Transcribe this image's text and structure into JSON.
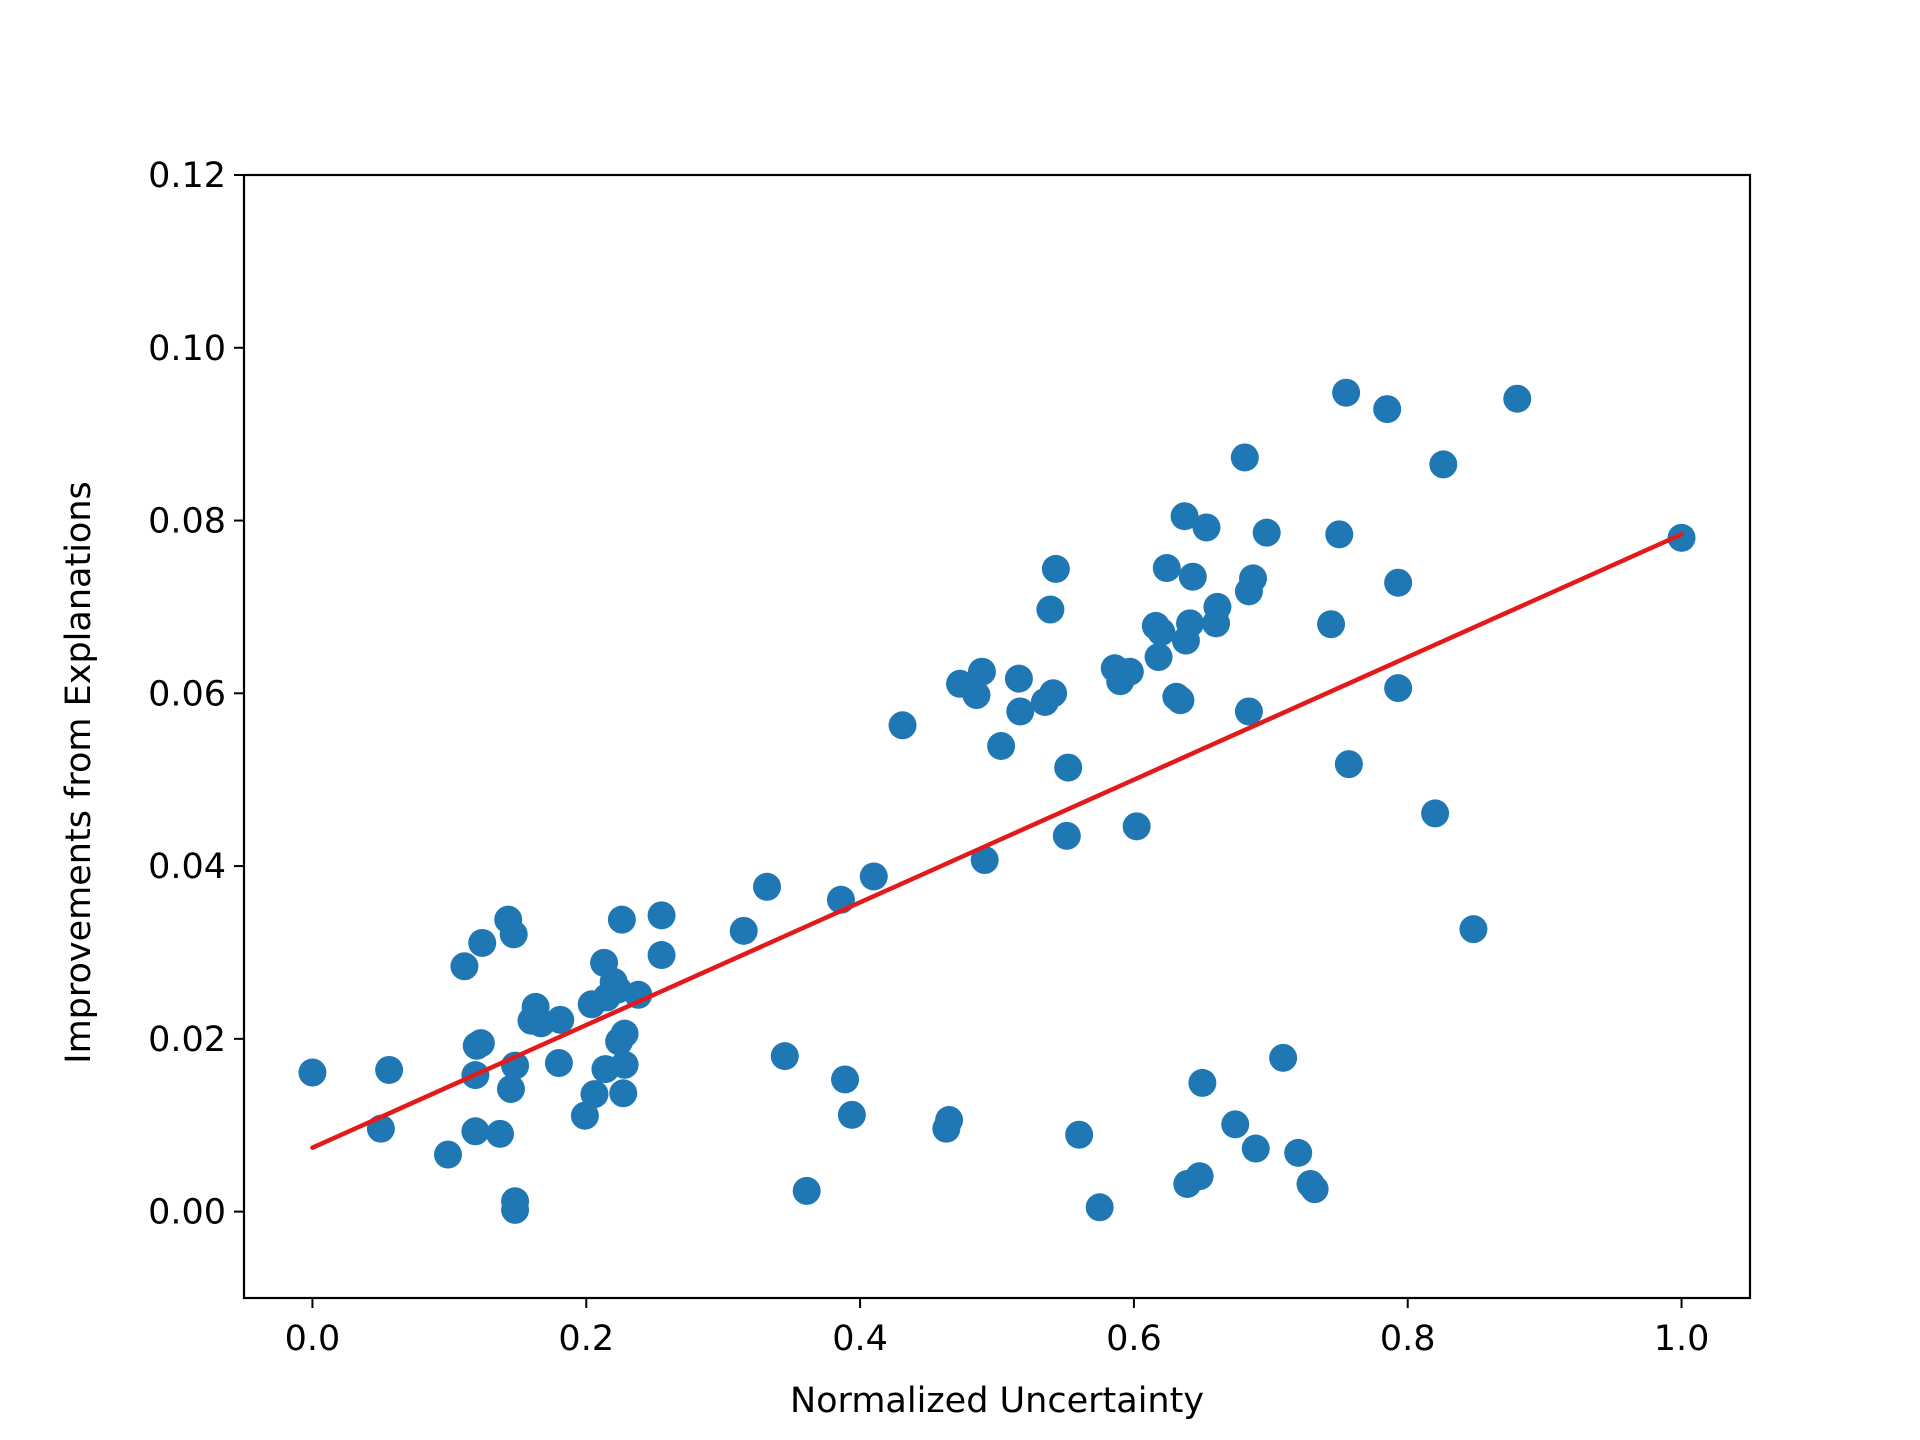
{
  "chart_data": {
    "type": "scatter",
    "title": "",
    "xlabel": "Normalized Uncertainty",
    "ylabel": "Improvements from Explanations",
    "xlim": [
      -0.05,
      1.05
    ],
    "ylim": [
      -0.01,
      0.12
    ],
    "xticks": [
      0.0,
      0.2,
      0.4,
      0.6,
      0.8,
      1.0
    ],
    "xtick_labels": [
      "0.0",
      "0.2",
      "0.4",
      "0.6",
      "0.8",
      "1.0"
    ],
    "yticks": [
      0.0,
      0.02,
      0.04,
      0.06,
      0.08,
      0.1,
      0.12
    ],
    "ytick_labels": [
      "0.00",
      "0.02",
      "0.04",
      "0.06",
      "0.08",
      "0.10",
      "0.12"
    ],
    "grid": false,
    "point_color": "#1f77b4",
    "line_color": "#e31a1c",
    "fit_line": {
      "x": [
        0.0,
        1.0
      ],
      "y": [
        0.0074,
        0.0784
      ]
    },
    "points": [
      [
        0.0,
        0.0161
      ],
      [
        0.05,
        0.0096
      ],
      [
        0.056,
        0.0164
      ],
      [
        0.099,
        0.0066
      ],
      [
        0.111,
        0.0284
      ],
      [
        0.119,
        0.0158
      ],
      [
        0.119,
        0.0093
      ],
      [
        0.12,
        0.0192
      ],
      [
        0.123,
        0.0195
      ],
      [
        0.124,
        0.0311
      ],
      [
        0.137,
        0.009
      ],
      [
        0.143,
        0.0338
      ],
      [
        0.145,
        0.0142
      ],
      [
        0.147,
        0.0321
      ],
      [
        0.148,
        0.0169
      ],
      [
        0.148,
        0.0012
      ],
      [
        0.148,
        0.0002
      ],
      [
        0.16,
        0.0221
      ],
      [
        0.163,
        0.0237
      ],
      [
        0.167,
        0.0218
      ],
      [
        0.18,
        0.0172
      ],
      [
        0.181,
        0.0222
      ],
      [
        0.199,
        0.0111
      ],
      [
        0.204,
        0.024
      ],
      [
        0.206,
        0.0136
      ],
      [
        0.213,
        0.0288
      ],
      [
        0.214,
        0.0165
      ],
      [
        0.215,
        0.0248
      ],
      [
        0.22,
        0.0266
      ],
      [
        0.223,
        0.0257
      ],
      [
        0.224,
        0.0197
      ],
      [
        0.226,
        0.0338
      ],
      [
        0.227,
        0.0137
      ],
      [
        0.228,
        0.017
      ],
      [
        0.228,
        0.0206
      ],
      [
        0.238,
        0.0251
      ],
      [
        0.255,
        0.0343
      ],
      [
        0.255,
        0.0297
      ],
      [
        0.315,
        0.0325
      ],
      [
        0.332,
        0.0376
      ],
      [
        0.345,
        0.018
      ],
      [
        0.361,
        0.0024
      ],
      [
        0.386,
        0.0361
      ],
      [
        0.389,
        0.0153
      ],
      [
        0.394,
        0.0112
      ],
      [
        0.41,
        0.0388
      ],
      [
        0.431,
        0.0563
      ],
      [
        0.463,
        0.0096
      ],
      [
        0.465,
        0.0106
      ],
      [
        0.473,
        0.0611
      ],
      [
        0.485,
        0.0598
      ],
      [
        0.489,
        0.0625
      ],
      [
        0.491,
        0.0407
      ],
      [
        0.503,
        0.0539
      ],
      [
        0.516,
        0.0617
      ],
      [
        0.517,
        0.0579
      ],
      [
        0.535,
        0.059
      ],
      [
        0.539,
        0.0697
      ],
      [
        0.541,
        0.06
      ],
      [
        0.543,
        0.0744
      ],
      [
        0.551,
        0.0435
      ],
      [
        0.552,
        0.0514
      ],
      [
        0.56,
        0.0089
      ],
      [
        0.575,
        0.0005
      ],
      [
        0.586,
        0.0629
      ],
      [
        0.59,
        0.0614
      ],
      [
        0.597,
        0.0625
      ],
      [
        0.602,
        0.0446
      ],
      [
        0.616,
        0.0678
      ],
      [
        0.618,
        0.0642
      ],
      [
        0.62,
        0.0671
      ],
      [
        0.624,
        0.0745
      ],
      [
        0.631,
        0.0596
      ],
      [
        0.634,
        0.0592
      ],
      [
        0.637,
        0.0805
      ],
      [
        0.638,
        0.0661
      ],
      [
        0.639,
        0.0032
      ],
      [
        0.641,
        0.0681
      ],
      [
        0.643,
        0.0735
      ],
      [
        0.648,
        0.0041
      ],
      [
        0.65,
        0.0149
      ],
      [
        0.653,
        0.0792
      ],
      [
        0.66,
        0.0681
      ],
      [
        0.661,
        0.07
      ],
      [
        0.674,
        0.0101
      ],
      [
        0.681,
        0.0873
      ],
      [
        0.684,
        0.0579
      ],
      [
        0.684,
        0.0718
      ],
      [
        0.687,
        0.0733
      ],
      [
        0.689,
        0.0073
      ],
      [
        0.697,
        0.0786
      ],
      [
        0.709,
        0.0178
      ],
      [
        0.72,
        0.0068
      ],
      [
        0.729,
        0.0032
      ],
      [
        0.732,
        0.0026
      ],
      [
        0.744,
        0.068
      ],
      [
        0.75,
        0.0784
      ],
      [
        0.755,
        0.0948
      ],
      [
        0.757,
        0.0518
      ],
      [
        0.785,
        0.0929
      ],
      [
        0.793,
        0.0728
      ],
      [
        0.793,
        0.0606
      ],
      [
        0.82,
        0.0461
      ],
      [
        0.826,
        0.0865
      ],
      [
        0.848,
        0.0327
      ],
      [
        0.88,
        0.0941
      ],
      [
        1.0,
        0.078
      ]
    ]
  }
}
